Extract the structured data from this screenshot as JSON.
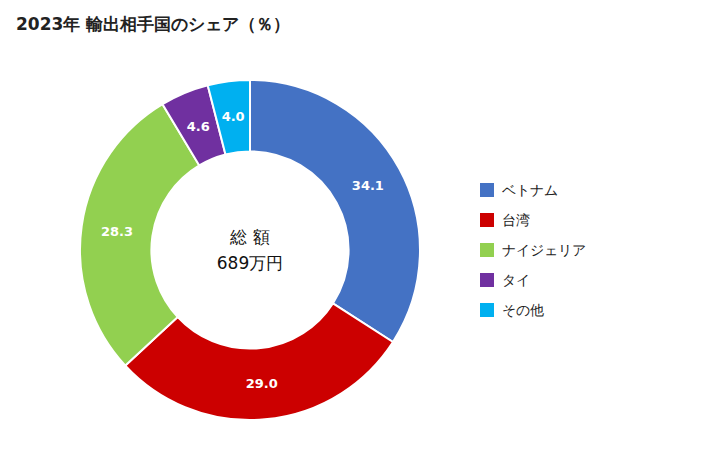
{
  "chart_data": {
    "type": "donut",
    "title": "2023年 輸出相手国のシェア（％）",
    "annotations": [
      "総 額",
      "689万円"
    ],
    "categories": [
      "ベトナム",
      "台湾",
      "ナイジェリア",
      "タイ",
      "その他"
    ],
    "values": [
      34.1,
      29.0,
      28.3,
      4.6,
      4.0
    ],
    "value_labels": [
      "34.1",
      "29.0",
      "28.3",
      "4.6",
      "4.0"
    ],
    "colors": [
      "#4472C4",
      "#CC0000",
      "#92D050",
      "#7030A0",
      "#00B0F0"
    ],
    "data_labels": true,
    "legend": "right"
  }
}
